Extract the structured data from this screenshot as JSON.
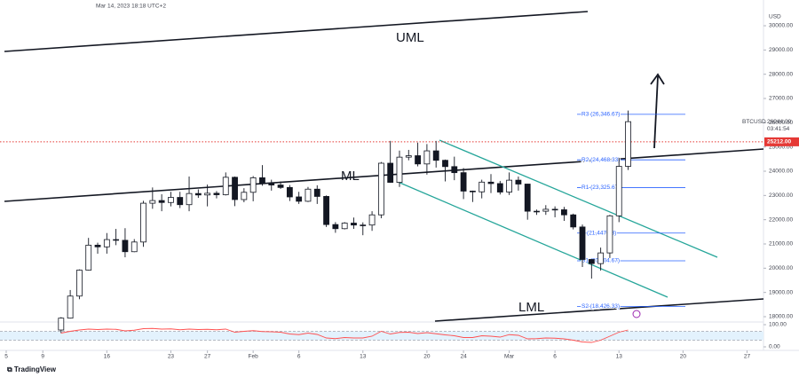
{
  "chart_data": {
    "type": "candlestick",
    "datetime": "Mar 14, 2023 18:18 UTC+2",
    "currency": "USD",
    "symbol": "BTCUSD",
    "last_price": {
      "value": 26044,
      "label": "26044.00"
    },
    "countdown": "03:41:54",
    "price_line": {
      "value": 25212,
      "label": "25212.00",
      "color": "#e53935"
    },
    "annotations": [
      "UML",
      "ML",
      "LML"
    ],
    "pivots": [
      {
        "label": "R3 (26,346.67)",
        "value": 26346.67
      },
      {
        "label": "R2 (24,468.33)",
        "value": 24468.33
      },
      {
        "label": "R1 (23,325.67)",
        "value": 23325.67
      },
      {
        "label": "P (21,447.33)",
        "value": 21447.33
      },
      {
        "label": "S1 (20,304.67)",
        "value": 20304.67
      },
      {
        "label": "S2 (18,426.33)",
        "value": 18426.33
      }
    ],
    "xlim": [
      -0.68,
      82.8
    ],
    "xticks": [
      {
        "value": 0,
        "label": "5"
      },
      {
        "value": 4,
        "label": "9"
      },
      {
        "value": 11,
        "label": "16"
      },
      {
        "value": 18,
        "label": "23"
      },
      {
        "value": 22,
        "label": "27"
      },
      {
        "value": 27,
        "label": "Feb"
      },
      {
        "value": 32,
        "label": "6"
      },
      {
        "value": 39,
        "label": "13"
      },
      {
        "value": 46,
        "label": "20"
      },
      {
        "value": 50,
        "label": "24"
      },
      {
        "value": 55,
        "label": "Mar"
      },
      {
        "value": 60,
        "label": "6"
      },
      {
        "value": 67,
        "label": "13"
      },
      {
        "value": 74,
        "label": "20"
      },
      {
        "value": 81,
        "label": "27"
      }
    ],
    "ylim": [
      17817,
      31062
    ],
    "yticks": [
      {
        "value": 18000,
        "label": "18000.00"
      },
      {
        "value": 19000,
        "label": "19000.00"
      },
      {
        "value": 20000,
        "label": "20000.00"
      },
      {
        "value": 21000,
        "label": "21000.00"
      },
      {
        "value": 22000,
        "label": "22000.00"
      },
      {
        "value": 23000,
        "label": "23000.00"
      },
      {
        "value": 24000,
        "label": "24000.00"
      },
      {
        "value": 25000,
        "label": "25000.00"
      },
      {
        "value": 26000,
        "label": "26000.00"
      },
      {
        "value": 27000,
        "label": "27000.00"
      },
      {
        "value": 28000,
        "label": "28000.00"
      },
      {
        "value": 29000,
        "label": "29000.00"
      },
      {
        "value": 30000,
        "label": "30000.00"
      }
    ],
    "x": [
      6,
      7,
      8,
      9,
      10,
      11,
      12,
      13,
      14,
      15,
      16,
      17,
      18,
      19,
      20,
      21,
      22,
      23,
      24,
      25,
      26,
      27,
      28,
      29,
      30,
      31,
      32,
      33,
      34,
      35,
      36,
      37,
      38,
      39,
      40,
      41,
      42,
      43,
      44,
      45,
      46,
      47,
      48,
      49,
      50,
      51,
      52,
      53,
      54,
      55,
      56,
      57,
      58,
      59,
      60,
      61,
      62,
      63,
      64,
      65,
      66,
      67,
      68
    ],
    "ohlc": [
      [
        17450,
        17980,
        17320,
        17940
      ],
      [
        17940,
        19100,
        17920,
        18850
      ],
      [
        18850,
        19950,
        18720,
        19920
      ],
      [
        19920,
        21250,
        19900,
        20950
      ],
      [
        20950,
        21050,
        20600,
        20880
      ],
      [
        20880,
        21450,
        20600,
        21180
      ],
      [
        21180,
        21620,
        20950,
        21150
      ],
      [
        21150,
        21650,
        20450,
        20680
      ],
      [
        20680,
        21200,
        20660,
        21080
      ],
      [
        21080,
        22780,
        20880,
        22680
      ],
      [
        22680,
        23330,
        22450,
        22790
      ],
      [
        22790,
        23050,
        22350,
        22710
      ],
      [
        22710,
        23150,
        22550,
        22920
      ],
      [
        22920,
        23150,
        22480,
        22620
      ],
      [
        22620,
        23780,
        22350,
        23080
      ],
      [
        23080,
        23250,
        22900,
        23020
      ],
      [
        23020,
        23450,
        22550,
        23090
      ],
      [
        23090,
        23180,
        22880,
        23030
      ],
      [
        23030,
        23950,
        23000,
        23750
      ],
      [
        23750,
        23780,
        22560,
        22830
      ],
      [
        22830,
        23300,
        22720,
        23130
      ],
      [
        23130,
        23800,
        22760,
        23730
      ],
      [
        23730,
        24250,
        23400,
        23490
      ],
      [
        23490,
        23650,
        23200,
        23430
      ],
      [
        23430,
        23580,
        23270,
        23330
      ],
      [
        23330,
        23430,
        22770,
        22940
      ],
      [
        22940,
        23150,
        22650,
        22760
      ],
      [
        22760,
        23350,
        22730,
        23260
      ],
      [
        23260,
        23420,
        22650,
        22960
      ],
      [
        22960,
        23000,
        21700,
        21800
      ],
      [
        21800,
        21900,
        21460,
        21630
      ],
      [
        21630,
        21900,
        21600,
        21860
      ],
      [
        21860,
        22090,
        21620,
        21780
      ],
      [
        21780,
        21890,
        21360,
        21780
      ],
      [
        21780,
        22350,
        21540,
        22200
      ],
      [
        22200,
        24380,
        22060,
        24330
      ],
      [
        24330,
        25250,
        23520,
        23540
      ],
      [
        23540,
        24850,
        23350,
        24580
      ],
      [
        24580,
        24880,
        24450,
        24640
      ],
      [
        24640,
        25180,
        24200,
        24300
      ],
      [
        24300,
        25120,
        23860,
        24840
      ],
      [
        24840,
        25250,
        24150,
        24450
      ],
      [
        24450,
        24480,
        23580,
        24190
      ],
      [
        24190,
        24600,
        23630,
        23940
      ],
      [
        23940,
        24130,
        22850,
        23180
      ],
      [
        23180,
        23200,
        22730,
        23150
      ],
      [
        23150,
        23650,
        22880,
        23550
      ],
      [
        23550,
        23880,
        23100,
        23490
      ],
      [
        23490,
        23600,
        23040,
        23140
      ],
      [
        23140,
        23950,
        23020,
        23630
      ],
      [
        23630,
        23780,
        23200,
        23470
      ],
      [
        23470,
        23480,
        22000,
        22350
      ],
      [
        22350,
        22420,
        22200,
        22350
      ],
      [
        22350,
        22600,
        22200,
        22430
      ],
      [
        22430,
        22550,
        22100,
        22410
      ],
      [
        22410,
        22530,
        21950,
        22200
      ],
      [
        22200,
        22250,
        21600,
        21700
      ],
      [
        21700,
        21800,
        20050,
        20360
      ],
      [
        20360,
        20370,
        19570,
        20190
      ],
      [
        20190,
        20850,
        19900,
        20630
      ],
      [
        20630,
        22200,
        20420,
        22160
      ],
      [
        22160,
        24550,
        21900,
        24200
      ],
      [
        24200,
        26500,
        24050,
        26044
      ]
    ],
    "rsi": {
      "ylim": [
        0,
        100
      ],
      "yticks": [
        {
          "value": 100,
          "label": "100.00"
        },
        {
          "value": 0,
          "label": "0.00"
        }
      ],
      "bands": [
        30,
        70
      ],
      "color": "#ff5252",
      "values": [
        62,
        70,
        76,
        80,
        78,
        80,
        79,
        72,
        75,
        82,
        83,
        80,
        81,
        77,
        80,
        78,
        79,
        77,
        80,
        66,
        70,
        73,
        69,
        68,
        66,
        58,
        55,
        62,
        56,
        40,
        37,
        42,
        40,
        40,
        48,
        70,
        58,
        65,
        66,
        60,
        64,
        59,
        54,
        50,
        42,
        42,
        50,
        48,
        44,
        55,
        52,
        36,
        37,
        40,
        39,
        36,
        30,
        22,
        20,
        30,
        48,
        66,
        76
      ]
    }
  }
}
